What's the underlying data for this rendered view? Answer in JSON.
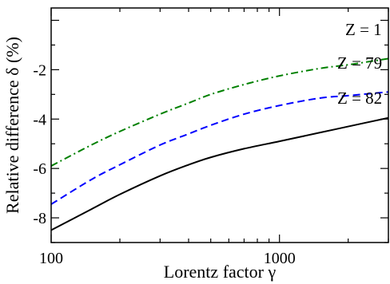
{
  "chart_data": {
    "type": "line",
    "xlabel": "Lorentz factor γ",
    "ylabel": "Relative difference δ (%)",
    "x_scale": "log",
    "xlim": [
      100,
      3000
    ],
    "ylim": [
      -9,
      0.5
    ],
    "x_ticks": [
      {
        "value": 100,
        "label": "100"
      },
      {
        "value": 1000,
        "label": "1000"
      }
    ],
    "y_ticks": [
      {
        "value": -8,
        "label": "-8"
      },
      {
        "value": -6,
        "label": "-6"
      },
      {
        "value": -4,
        "label": "-4"
      },
      {
        "value": -2,
        "label": "-2"
      }
    ],
    "grid": false,
    "legend": "none",
    "series": [
      {
        "name": "Z = 1",
        "color": "#008000",
        "dash": "dash-dot",
        "x": [
          100,
          150,
          200,
          300,
          400,
          500,
          700,
          1000,
          1500,
          2000,
          3000
        ],
        "y": [
          -5.9,
          -5.05,
          -4.5,
          -3.8,
          -3.35,
          -3.0,
          -2.6,
          -2.25,
          -1.95,
          -1.8,
          -1.55
        ]
      },
      {
        "name": "Z = 79",
        "color": "#0000ff",
        "dash": "dashed",
        "x": [
          100,
          150,
          200,
          300,
          400,
          500,
          700,
          1000,
          1500,
          2000,
          3000
        ],
        "y": [
          -7.45,
          -6.45,
          -5.85,
          -5.05,
          -4.6,
          -4.25,
          -3.8,
          -3.45,
          -3.15,
          -3.05,
          -2.9
        ]
      },
      {
        "name": "Z = 82",
        "color": "#000000",
        "dash": "solid",
        "x": [
          100,
          150,
          200,
          300,
          400,
          500,
          700,
          1000,
          1500,
          2000,
          3000
        ],
        "y": [
          -8.5,
          -7.65,
          -7.05,
          -6.3,
          -5.85,
          -5.55,
          -5.2,
          -4.9,
          -4.55,
          -4.3,
          -3.95
        ]
      }
    ]
  }
}
